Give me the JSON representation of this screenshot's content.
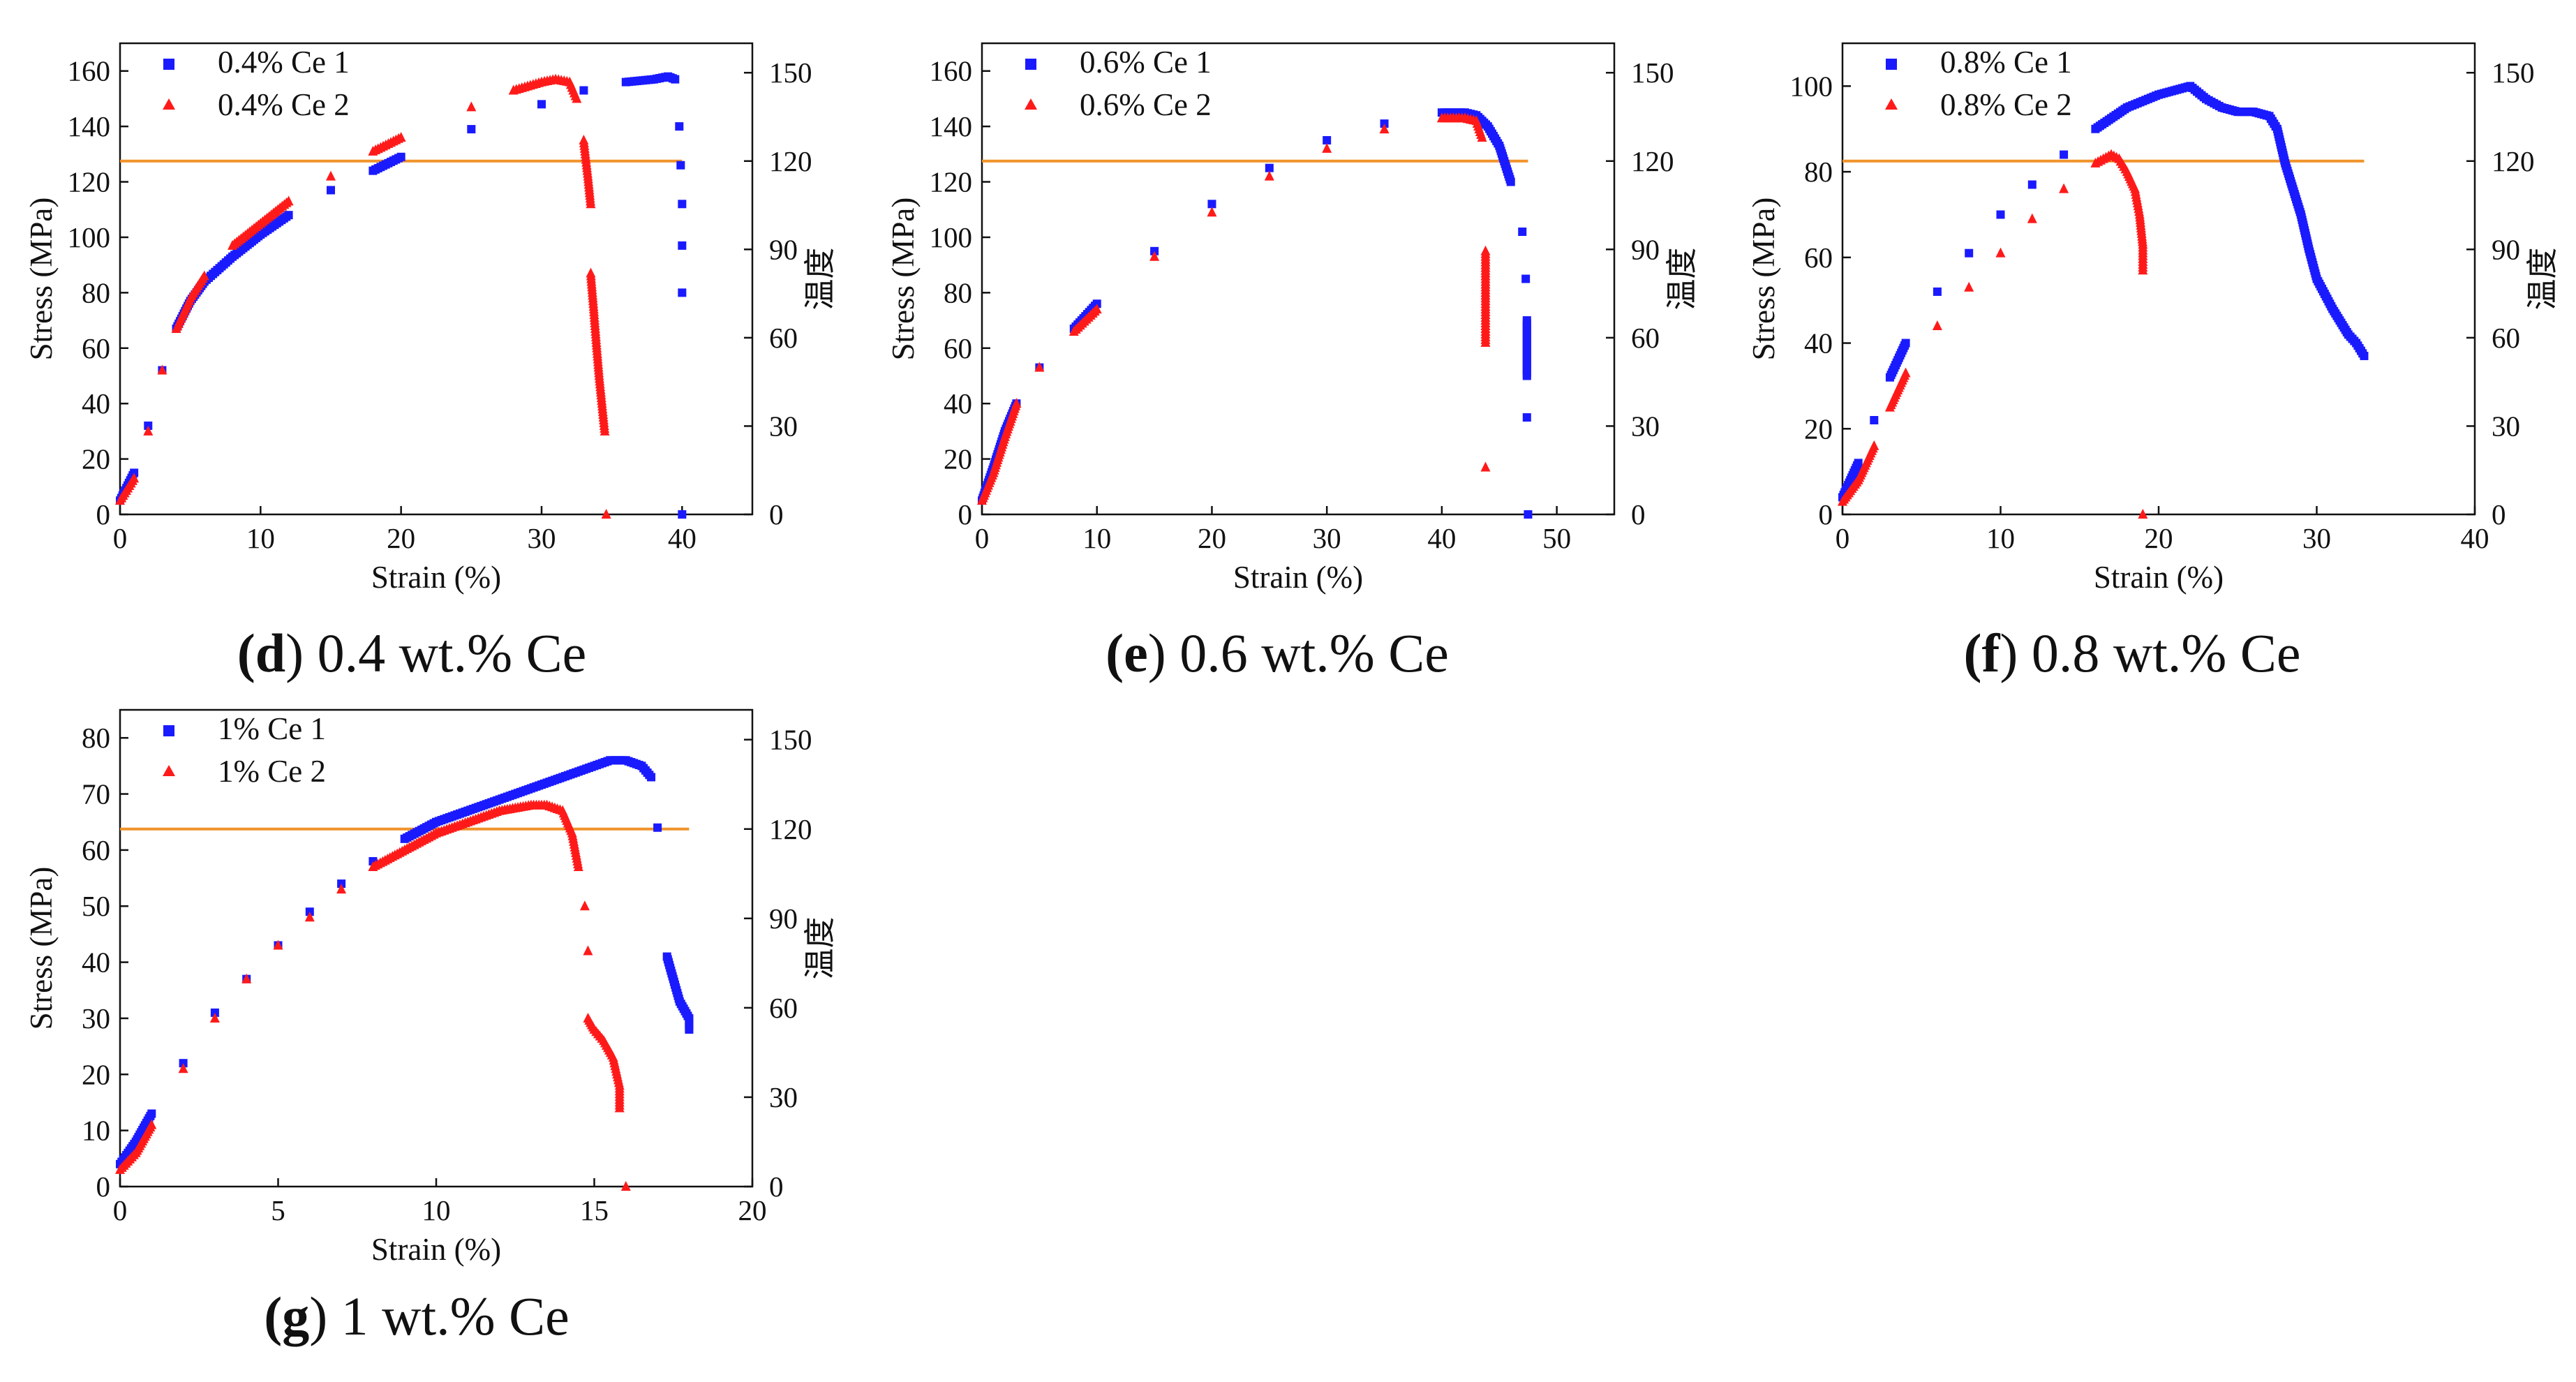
{
  "colors": {
    "series1": "#1a1aff",
    "series2": "#ff1a1a",
    "refline": "#f0932b",
    "axis": "#111111"
  },
  "charts": [
    {
      "caption_letter": "d",
      "caption_text": " 0.4 wt.% Ce",
      "xlabel": "Strain (%)",
      "ylabel": "Stress (MPa)",
      "y2label": "温度",
      "xticks": [
        "0",
        "10",
        "20",
        "30",
        "40"
      ],
      "yticks": [
        "0",
        "20",
        "40",
        "60",
        "80",
        "100",
        "120",
        "140",
        "160"
      ],
      "y2ticks": [
        "0",
        "30",
        "60",
        "90",
        "120",
        "150"
      ],
      "legend": [
        "0.4% Ce 1",
        "0.4% Ce 2"
      ]
    },
    {
      "caption_letter": "e",
      "caption_text": " 0.6 wt.% Ce",
      "xlabel": "Strain (%)",
      "ylabel": "Stress (MPa)",
      "y2label": "温度",
      "xticks": [
        "0",
        "10",
        "20",
        "30",
        "40",
        "50"
      ],
      "yticks": [
        "0",
        "20",
        "40",
        "60",
        "80",
        "100",
        "120",
        "140",
        "160"
      ],
      "y2ticks": [
        "0",
        "30",
        "60",
        "90",
        "120",
        "150"
      ],
      "legend": [
        "0.6% Ce 1",
        "0.6% Ce 2"
      ]
    },
    {
      "caption_letter": "f",
      "caption_text": " 0.8 wt.% Ce",
      "xlabel": "Strain (%)",
      "ylabel": "Stress (MPa)",
      "y2label": "温度",
      "xticks": [
        "0",
        "10",
        "20",
        "30",
        "40"
      ],
      "yticks": [
        "0",
        "20",
        "40",
        "60",
        "80",
        "100"
      ],
      "y2ticks": [
        "0",
        "30",
        "60",
        "90",
        "120",
        "150"
      ],
      "legend": [
        "0.8% Ce 1",
        "0.8% Ce 2"
      ]
    },
    {
      "caption_letter": "g",
      "caption_text": " 1 wt.% Ce",
      "xlabel": "Strain (%)",
      "ylabel": "Stress (MPa)",
      "y2label": "温度",
      "xticks": [
        "0",
        "5",
        "10",
        "15",
        "20"
      ],
      "yticks": [
        "0",
        "10",
        "20",
        "30",
        "40",
        "50",
        "60",
        "70",
        "80"
      ],
      "y2ticks": [
        "0",
        "30",
        "60",
        "90",
        "120",
        "150"
      ],
      "legend": [
        "1% Ce 1",
        "1% Ce 2"
      ]
    }
  ],
  "chart_data": [
    {
      "type": "scatter",
      "xlim": [
        0,
        45
      ],
      "ylim": [
        0,
        170
      ],
      "y2lim": [
        0,
        160
      ],
      "reference_line_y2": 120,
      "series": [
        {
          "name": "0.4% Ce 1",
          "marker": "square",
          "points": [
            [
              0,
              5
            ],
            [
              1,
              15
            ],
            [
              2,
              32
            ],
            [
              3,
              52
            ],
            [
              4,
              67
            ],
            [
              5,
              77
            ],
            [
              6,
              84
            ],
            [
              8,
              93
            ],
            [
              10,
              101
            ],
            [
              12,
              108
            ],
            [
              15,
              117
            ],
            [
              18,
              124
            ],
            [
              20,
              129
            ],
            [
              25,
              139
            ],
            [
              30,
              148
            ],
            [
              33,
              153
            ],
            [
              36,
              156
            ],
            [
              38,
              157
            ],
            [
              39,
              158
            ],
            [
              39.5,
              157
            ],
            [
              39.8,
              140
            ],
            [
              39.9,
              126
            ],
            [
              40,
              112
            ],
            [
              40,
              97
            ],
            [
              40,
              80
            ],
            [
              40,
              0
            ]
          ]
        },
        {
          "name": "0.4% Ce 2",
          "marker": "triangle",
          "points": [
            [
              0,
              5
            ],
            [
              1,
              13
            ],
            [
              2,
              30
            ],
            [
              3,
              52
            ],
            [
              4,
              67
            ],
            [
              5,
              78
            ],
            [
              6,
              86
            ],
            [
              8,
              97
            ],
            [
              10,
              105
            ],
            [
              12,
              113
            ],
            [
              15,
              122
            ],
            [
              18,
              131
            ],
            [
              20,
              136
            ],
            [
              25,
              147
            ],
            [
              28,
              153
            ],
            [
              30,
              156
            ],
            [
              31,
              157
            ],
            [
              32,
              156
            ],
            [
              32.5,
              150
            ],
            [
              33,
              135
            ],
            [
              33.3,
              122
            ],
            [
              33.5,
              112
            ],
            [
              33.5,
              87
            ],
            [
              33.7,
              75
            ],
            [
              33.9,
              62
            ],
            [
              34.1,
              50
            ],
            [
              34.3,
              40
            ],
            [
              34.5,
              30
            ],
            [
              34.6,
              0
            ]
          ]
        }
      ]
    },
    {
      "type": "scatter",
      "xlim": [
        0,
        55
      ],
      "ylim": [
        0,
        170
      ],
      "y2lim": [
        0,
        160
      ],
      "reference_line_y2": 120,
      "series": [
        {
          "name": "0.6% Ce 1",
          "marker": "square",
          "points": [
            [
              0,
              5
            ],
            [
              1,
              17
            ],
            [
              2,
              30
            ],
            [
              3,
              40
            ],
            [
              5,
              53
            ],
            [
              8,
              67
            ],
            [
              10,
              76
            ],
            [
              15,
              95
            ],
            [
              20,
              112
            ],
            [
              25,
              125
            ],
            [
              30,
              135
            ],
            [
              35,
              141
            ],
            [
              40,
              145
            ],
            [
              42,
              145
            ],
            [
              43,
              144
            ],
            [
              44,
              140
            ],
            [
              45,
              133
            ],
            [
              46,
              120
            ],
            [
              47,
              102
            ],
            [
              47.3,
              85
            ],
            [
              47.4,
              70
            ],
            [
              47.4,
              60
            ],
            [
              47.4,
              50
            ],
            [
              47.4,
              35
            ],
            [
              47.5,
              0
            ]
          ]
        },
        {
          "name": "0.6% Ce 2",
          "marker": "triangle",
          "points": [
            [
              0,
              5
            ],
            [
              1,
              15
            ],
            [
              2,
              28
            ],
            [
              3,
              40
            ],
            [
              5,
              53
            ],
            [
              8,
              66
            ],
            [
              10,
              74
            ],
            [
              15,
              93
            ],
            [
              20,
              109
            ],
            [
              25,
              122
            ],
            [
              30,
              132
            ],
            [
              35,
              139
            ],
            [
              40,
              143
            ],
            [
              42,
              143
            ],
            [
              43,
              142
            ],
            [
              43.5,
              136
            ],
            [
              43.8,
              95
            ],
            [
              43.8,
              85
            ],
            [
              43.8,
              74
            ],
            [
              43.8,
              62
            ],
            [
              43.8,
              17
            ]
          ]
        }
      ]
    },
    {
      "type": "scatter",
      "xlim": [
        0,
        40
      ],
      "ylim": [
        0,
        110
      ],
      "y2lim": [
        0,
        160
      ],
      "reference_line_y2": 120,
      "series": [
        {
          "name": "0.8% Ce 1",
          "marker": "square",
          "points": [
            [
              0,
              4
            ],
            [
              1,
              12
            ],
            [
              2,
              22
            ],
            [
              3,
              32
            ],
            [
              4,
              40
            ],
            [
              6,
              52
            ],
            [
              8,
              61
            ],
            [
              10,
              70
            ],
            [
              12,
              77
            ],
            [
              14,
              84
            ],
            [
              16,
              90
            ],
            [
              18,
              95
            ],
            [
              20,
              98
            ],
            [
              21,
              99
            ],
            [
              22,
              100
            ],
            [
              23,
              97
            ],
            [
              24,
              95
            ],
            [
              25,
              94
            ],
            [
              26,
              94
            ],
            [
              27,
              93
            ],
            [
              27.5,
              90
            ],
            [
              28,
              82
            ],
            [
              28.5,
              76
            ],
            [
              29,
              70
            ],
            [
              29.5,
              62
            ],
            [
              30,
              55
            ],
            [
              31,
              48
            ],
            [
              32,
              42
            ],
            [
              32.5,
              40
            ],
            [
              33,
              37
            ]
          ]
        },
        {
          "name": "0.8% Ce 2",
          "marker": "triangle",
          "points": [
            [
              0,
              3
            ],
            [
              1,
              8
            ],
            [
              2,
              16
            ],
            [
              3,
              25
            ],
            [
              4,
              33
            ],
            [
              6,
              44
            ],
            [
              8,
              53
            ],
            [
              10,
              61
            ],
            [
              12,
              69
            ],
            [
              14,
              76
            ],
            [
              16,
              82
            ],
            [
              17,
              84
            ],
            [
              17.5,
              83
            ],
            [
              18,
              80
            ],
            [
              18.5,
              76
            ],
            [
              18.8,
              70
            ],
            [
              19,
              63
            ],
            [
              19,
              57
            ],
            [
              19,
              0
            ]
          ]
        }
      ]
    },
    {
      "type": "scatter",
      "xlim": [
        0,
        20
      ],
      "ylim": [
        0,
        85
      ],
      "y2lim": [
        0,
        160
      ],
      "reference_line_y2": 120,
      "series": [
        {
          "name": "1% Ce 1",
          "marker": "square",
          "points": [
            [
              0,
              4
            ],
            [
              0.5,
              8
            ],
            [
              1,
              13
            ],
            [
              2,
              22
            ],
            [
              3,
              31
            ],
            [
              4,
              37
            ],
            [
              5,
              43
            ],
            [
              6,
              49
            ],
            [
              7,
              54
            ],
            [
              8,
              58
            ],
            [
              9,
              62
            ],
            [
              10,
              65
            ],
            [
              11,
              67
            ],
            [
              12,
              69
            ],
            [
              13,
              71
            ],
            [
              14,
              73
            ],
            [
              15,
              75
            ],
            [
              15.5,
              76
            ],
            [
              16,
              76
            ],
            [
              16.5,
              75
            ],
            [
              16.8,
              73
            ],
            [
              17,
              64
            ],
            [
              17.3,
              41
            ],
            [
              17.5,
              37
            ],
            [
              17.7,
              33
            ],
            [
              18,
              30
            ],
            [
              18,
              28
            ]
          ]
        },
        {
          "name": "1% Ce 2",
          "marker": "triangle",
          "points": [
            [
              0,
              3
            ],
            [
              0.5,
              6
            ],
            [
              1,
              11
            ],
            [
              2,
              21
            ],
            [
              3,
              30
            ],
            [
              4,
              37
            ],
            [
              5,
              43
            ],
            [
              6,
              48
            ],
            [
              7,
              53
            ],
            [
              8,
              57
            ],
            [
              9,
              60
            ],
            [
              10,
              63
            ],
            [
              11,
              65
            ],
            [
              12,
              67
            ],
            [
              13,
              68
            ],
            [
              13.5,
              68
            ],
            [
              14,
              67
            ],
            [
              14.3,
              63
            ],
            [
              14.5,
              57
            ],
            [
              14.7,
              50
            ],
            [
              14.8,
              42
            ],
            [
              14.8,
              30
            ],
            [
              15,
              28
            ],
            [
              15.3,
              26
            ],
            [
              15.6,
              23
            ],
            [
              15.8,
              18
            ],
            [
              15.8,
              14
            ],
            [
              16,
              0
            ]
          ]
        }
      ]
    }
  ]
}
